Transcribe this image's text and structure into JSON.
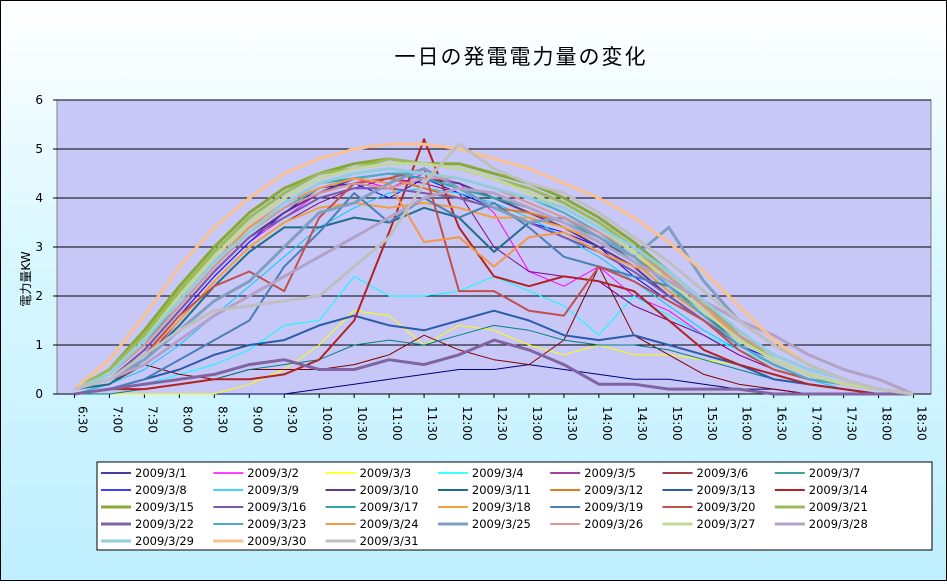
{
  "chart_data": {
    "type": "line",
    "title": "一日の発電電力量の変化",
    "ylabel": "電力量KW",
    "xlabel": "",
    "ylim": [
      0,
      6
    ],
    "yticks": [
      "0",
      "1",
      "2",
      "3",
      "4",
      "5",
      "6"
    ],
    "x": [
      "6:30",
      "7:00",
      "7:30",
      "8:00",
      "8:30",
      "9:00",
      "9:30",
      "10:00",
      "10:30",
      "11:00",
      "11:30",
      "12:00",
      "12:30",
      "13:00",
      "13:30",
      "14:00",
      "14:30",
      "15:00",
      "15:30",
      "16:00",
      "16:30",
      "17:00",
      "17:30",
      "18:00",
      "18:30"
    ],
    "grid": "horizontal",
    "legend_position": "bottom",
    "plot_background": "#c8c8f8",
    "series": [
      {
        "name": "2009/3/1",
        "color": "#000080",
        "width": 1,
        "values": [
          0,
          0,
          0,
          0,
          0,
          0,
          0,
          0.1,
          0.2,
          0.3,
          0.4,
          0.5,
          0.5,
          0.6,
          0.5,
          0.4,
          0.3,
          0.3,
          0.2,
          0.1,
          0.1,
          0,
          0,
          0,
          0
        ]
      },
      {
        "name": "2009/3/2",
        "color": "#ff00ff",
        "width": 1,
        "values": [
          0.1,
          0.3,
          0.8,
          1.6,
          2.4,
          3.1,
          3.6,
          4.1,
          4.4,
          4.2,
          4.5,
          4.3,
          3.7,
          2.5,
          2.2,
          2.6,
          2,
          1.7,
          1.2,
          0.8,
          0.5,
          0.3,
          0.2,
          0.1,
          0
        ]
      },
      {
        "name": "2009/3/3",
        "color": "#ffff00",
        "width": 1,
        "values": [
          0,
          0,
          0,
          0,
          0,
          0.2,
          0.5,
          1,
          1.7,
          1.6,
          1,
          1.4,
          1.3,
          1,
          0.8,
          1,
          0.8,
          0.8,
          0.7,
          0.6,
          0.4,
          0.2,
          0.1,
          0,
          0
        ]
      },
      {
        "name": "2009/3/4",
        "color": "#00ffff",
        "width": 1,
        "values": [
          0,
          0.1,
          0.2,
          0.4,
          0.6,
          0.9,
          1.4,
          1.5,
          2.4,
          2,
          2,
          2.1,
          2.4,
          2.1,
          1.8,
          1.2,
          2,
          1.6,
          1.2,
          0.9,
          0.6,
          0.3,
          0.2,
          0.1,
          0
        ]
      },
      {
        "name": "2009/3/5",
        "color": "#800080",
        "width": 1,
        "values": [
          0.1,
          0.3,
          0.7,
          1.5,
          2.3,
          3,
          3.5,
          3.9,
          4.2,
          4.4,
          4.3,
          4.1,
          3,
          2.5,
          2.4,
          2.3,
          1.8,
          1.5,
          1.2,
          0.8,
          0.5,
          0.3,
          0.2,
          0.1,
          0
        ]
      },
      {
        "name": "2009/3/6",
        "color": "#800000",
        "width": 1,
        "values": [
          0,
          0.2,
          0.6,
          0.4,
          0.3,
          0.5,
          0.5,
          0.5,
          0.6,
          0.8,
          1.2,
          0.9,
          0.7,
          0.6,
          1.1,
          2.6,
          1.2,
          0.8,
          0.4,
          0.2,
          0.1,
          0,
          0,
          0,
          0
        ]
      },
      {
        "name": "2009/3/7",
        "color": "#008080",
        "width": 1,
        "values": [
          0,
          0,
          0.1,
          0.2,
          0.3,
          0.5,
          0.6,
          0.7,
          1,
          1.1,
          1,
          1.2,
          1.4,
          1.3,
          1.1,
          1,
          1,
          0.9,
          0.7,
          0.5,
          0.3,
          0.2,
          0.1,
          0,
          0
        ]
      },
      {
        "name": "2009/3/8",
        "color": "#0000ff",
        "width": 1,
        "values": [
          0.1,
          0.3,
          0.8,
          1.6,
          2.4,
          3.1,
          3.7,
          4.2,
          4.3,
          4,
          4.4,
          4.1,
          3.8,
          3.5,
          3.3,
          3,
          2.4,
          1.9,
          1.5,
          1,
          0.7,
          0.4,
          0.2,
          0.1,
          0
        ]
      },
      {
        "name": "2009/3/9",
        "color": "#00ccff",
        "width": 1,
        "values": [
          0,
          0.2,
          0.5,
          1,
          1.6,
          2.2,
          2.8,
          3.4,
          3.8,
          4.1,
          4.2,
          4.1,
          3.9,
          3.6,
          3.2,
          2.8,
          2.3,
          1.8,
          1.3,
          0.9,
          0.5,
          0.3,
          0.1,
          0,
          0
        ]
      },
      {
        "name": "2009/3/10",
        "color": "#5b3a8e",
        "width": 2,
        "values": [
          0.1,
          0.3,
          0.9,
          1.7,
          2.5,
          3.2,
          3.7,
          4.1,
          4.4,
          4.5,
          4.4,
          4.3,
          4,
          3.7,
          3.4,
          3,
          2.6,
          2,
          1.5,
          1,
          0.6,
          0.3,
          0.2,
          0.1,
          0
        ]
      },
      {
        "name": "2009/3/11",
        "color": "#1f6f8b",
        "width": 2,
        "values": [
          0.1,
          0.2,
          0.7,
          1.4,
          2.2,
          2.9,
          3.4,
          3.4,
          3.6,
          3.5,
          3.8,
          3.6,
          2.9,
          3.5,
          3.6,
          3.2,
          2.7,
          2.1,
          1.6,
          1.1,
          0.7,
          0.4,
          0.2,
          0.1,
          0
        ]
      },
      {
        "name": "2009/3/12",
        "color": "#e07a1f",
        "width": 2,
        "values": [
          0.1,
          0.4,
          1,
          1.8,
          2.6,
          3.3,
          3.8,
          4.1,
          4.3,
          4.4,
          4.2,
          4,
          3.8,
          3.7,
          3.5,
          3.2,
          2.8,
          2.3,
          1.7,
          1.1,
          0.7,
          0.4,
          0.2,
          0.1,
          0
        ]
      },
      {
        "name": "2009/3/13",
        "color": "#2a5caa",
        "width": 2,
        "values": [
          0,
          0.1,
          0.3,
          0.5,
          0.8,
          1,
          1.1,
          1.4,
          1.6,
          1.4,
          1.3,
          1.5,
          1.7,
          1.5,
          1.2,
          1.1,
          1.2,
          1,
          0.8,
          0.6,
          0.3,
          0.2,
          0.1,
          0,
          0
        ]
      },
      {
        "name": "2009/3/14",
        "color": "#b22222",
        "width": 2,
        "values": [
          0,
          0.1,
          0.1,
          0.2,
          0.3,
          0.3,
          0.4,
          0.7,
          1.5,
          3.3,
          5.2,
          3.4,
          2.4,
          2.2,
          2.4,
          2.3,
          2.1,
          1.5,
          0.9,
          0.6,
          0.4,
          0.2,
          0.1,
          0,
          0
        ]
      },
      {
        "name": "2009/3/15",
        "color": "#88aa33",
        "width": 3,
        "values": [
          0.1,
          0.5,
          1.3,
          2.2,
          3,
          3.7,
          4.2,
          4.5,
          4.7,
          4.8,
          4.7,
          4.7,
          4.5,
          4.3,
          4,
          3.6,
          3.1,
          2.5,
          1.9,
          1.2,
          0.7,
          0.4,
          0.2,
          0.1,
          0
        ]
      },
      {
        "name": "2009/3/16",
        "color": "#7a5aa6",
        "width": 2,
        "values": [
          0.1,
          0.3,
          0.9,
          1.7,
          2.5,
          3.2,
          3.6,
          4,
          4.2,
          4.2,
          4.1,
          4,
          3.8,
          3.5,
          3.2,
          2.9,
          2.5,
          2,
          1.5,
          1,
          0.6,
          0.3,
          0.2,
          0.1,
          0
        ]
      },
      {
        "name": "2009/3/17",
        "color": "#2ca6a4",
        "width": 2,
        "values": [
          0.1,
          0.4,
          1,
          1.9,
          2.7,
          3.4,
          3.9,
          4.3,
          4.4,
          4.5,
          4.4,
          4.2,
          4,
          3.8,
          3.5,
          3.2,
          2.8,
          2.2,
          1.6,
          1,
          0.6,
          0.3,
          0.2,
          0.1,
          0
        ]
      },
      {
        "name": "2009/3/18",
        "color": "#f0a040",
        "width": 2,
        "values": [
          0.1,
          0.3,
          0.8,
          1.5,
          2.3,
          3,
          3.5,
          3.8,
          3.9,
          3.8,
          3.9,
          3.8,
          3.6,
          3.6,
          3.4,
          3.1,
          2.7,
          2.1,
          1.6,
          1,
          0.6,
          0.3,
          0.2,
          0.1,
          0
        ]
      },
      {
        "name": "2009/3/19",
        "color": "#4a7fb5",
        "width": 2,
        "values": [
          0,
          0.1,
          0.3,
          0.7,
          1.1,
          1.5,
          2.6,
          3.3,
          4.1,
          3.5,
          4,
          3.6,
          3.9,
          3.4,
          2.8,
          2.6,
          2.4,
          2.2,
          1.7,
          1.1,
          0.7,
          0.4,
          0.2,
          0.1,
          0
        ]
      },
      {
        "name": "2009/3/20",
        "color": "#c0504d",
        "width": 2,
        "values": [
          0.1,
          0.3,
          0.8,
          1.6,
          2.2,
          2.5,
          2.1,
          3.6,
          4.3,
          4.4,
          4.6,
          2.1,
          2.1,
          1.7,
          1.6,
          2.6,
          2.3,
          1.9,
          1.5,
          0.9,
          0.5,
          0.3,
          0.2,
          0.1,
          0
        ]
      },
      {
        "name": "2009/3/21",
        "color": "#9bbb59",
        "width": 3,
        "values": [
          0.1,
          0.5,
          1.2,
          2.1,
          2.9,
          3.6,
          4.1,
          4.5,
          4.6,
          4.8,
          4.7,
          4.6,
          4.4,
          4.2,
          3.9,
          3.5,
          3,
          2.4,
          1.8,
          1.2,
          0.7,
          0.4,
          0.2,
          0.1,
          0
        ]
      },
      {
        "name": "2009/3/22",
        "color": "#8064a2",
        "width": 3,
        "values": [
          0,
          0.1,
          0.2,
          0.3,
          0.4,
          0.6,
          0.7,
          0.5,
          0.5,
          0.7,
          0.6,
          0.8,
          1.1,
          0.9,
          0.6,
          0.2,
          0.2,
          0.1,
          0.1,
          0.1,
          0,
          0,
          0,
          0,
          0
        ]
      },
      {
        "name": "2009/3/23",
        "color": "#4bacc6",
        "width": 2,
        "values": [
          0.1,
          0.4,
          1,
          1.8,
          2.6,
          3.3,
          3.8,
          4.2,
          4.4,
          4.5,
          4.5,
          4.4,
          4.2,
          4,
          3.7,
          3.3,
          2.8,
          2.2,
          1.6,
          1,
          0.6,
          0.3,
          0.2,
          0.1,
          0
        ]
      },
      {
        "name": "2009/3/24",
        "color": "#f79646",
        "width": 2,
        "values": [
          0.1,
          0.4,
          1.1,
          1.9,
          2.7,
          3.4,
          3.9,
          4.2,
          4.4,
          4.3,
          3.1,
          3.2,
          2.6,
          3.2,
          3.3,
          2.9,
          2.6,
          2.4,
          1.8,
          1.1,
          0.7,
          0.4,
          0.2,
          0.1,
          0
        ]
      },
      {
        "name": "2009/3/25",
        "color": "#7f9fc0",
        "width": 3,
        "values": [
          0.1,
          0.3,
          0.7,
          1.3,
          1.9,
          2.3,
          3,
          3.7,
          3.9,
          4.3,
          4.6,
          4.2,
          3.8,
          3.5,
          3.6,
          3.2,
          2.8,
          3.4,
          2.3,
          1.5,
          1,
          0.6,
          0.3,
          0.1,
          0
        ]
      },
      {
        "name": "2009/3/26",
        "color": "#d99694",
        "width": 2,
        "values": [
          0.1,
          0.4,
          1,
          1.8,
          2.6,
          3.3,
          3.8,
          4.1,
          4.3,
          4.2,
          4.4,
          4.4,
          4.2,
          3.9,
          3.6,
          3.3,
          2.9,
          2.4,
          1.8,
          1.2,
          0.8,
          0.5,
          0.3,
          0.1,
          0
        ]
      },
      {
        "name": "2009/3/27",
        "color": "#c4d79b",
        "width": 3,
        "values": [
          0.1,
          0.4,
          1.1,
          2,
          2.8,
          3.5,
          4,
          4.4,
          4.6,
          4.7,
          4.7,
          4.6,
          4.4,
          4.1,
          3.8,
          3.4,
          2.9,
          2.3,
          1.7,
          1.1,
          0.7,
          0.4,
          0.2,
          0.1,
          0
        ]
      },
      {
        "name": "2009/3/28",
        "color": "#b3a2c7",
        "width": 3,
        "values": [
          0.1,
          0.3,
          0.6,
          1.1,
          1.6,
          2,
          2.4,
          2.8,
          3.2,
          3.6,
          4,
          4.2,
          4.1,
          3.8,
          3.5,
          3.1,
          2.7,
          2.3,
          1.9,
          1.5,
          1.2,
          0.8,
          0.5,
          0.3,
          0
        ]
      },
      {
        "name": "2009/3/29",
        "color": "#93cddd",
        "width": 3,
        "values": [
          0.1,
          0.4,
          1.1,
          1.9,
          2.7,
          3.3,
          3.9,
          4.3,
          4.5,
          4.6,
          4.5,
          4.4,
          4.2,
          4,
          3.8,
          3.4,
          3,
          2.5,
          1.9,
          1.3,
          0.8,
          0.5,
          0.3,
          0.1,
          0
        ]
      },
      {
        "name": "2009/3/30",
        "color": "#fac090",
        "width": 3,
        "values": [
          0.1,
          0.7,
          1.6,
          2.6,
          3.4,
          4,
          4.5,
          4.8,
          5,
          5.1,
          5.1,
          5,
          4.8,
          4.6,
          4.3,
          4,
          3.6,
          3.1,
          2.5,
          1.8,
          1.1,
          0.6,
          0.3,
          0.1,
          0
        ]
      },
      {
        "name": "2009/3/31",
        "color": "#bfbfbf",
        "width": 3,
        "values": [
          0.1,
          0.3,
          0.8,
          1.3,
          1.7,
          1.8,
          1.9,
          2,
          2.6,
          3.2,
          4.3,
          5.1,
          4.6,
          4.3,
          4.1,
          3.7,
          3.2,
          2.7,
          2.1,
          1.5,
          1,
          0.6,
          0.3,
          0.1,
          0
        ]
      }
    ]
  }
}
